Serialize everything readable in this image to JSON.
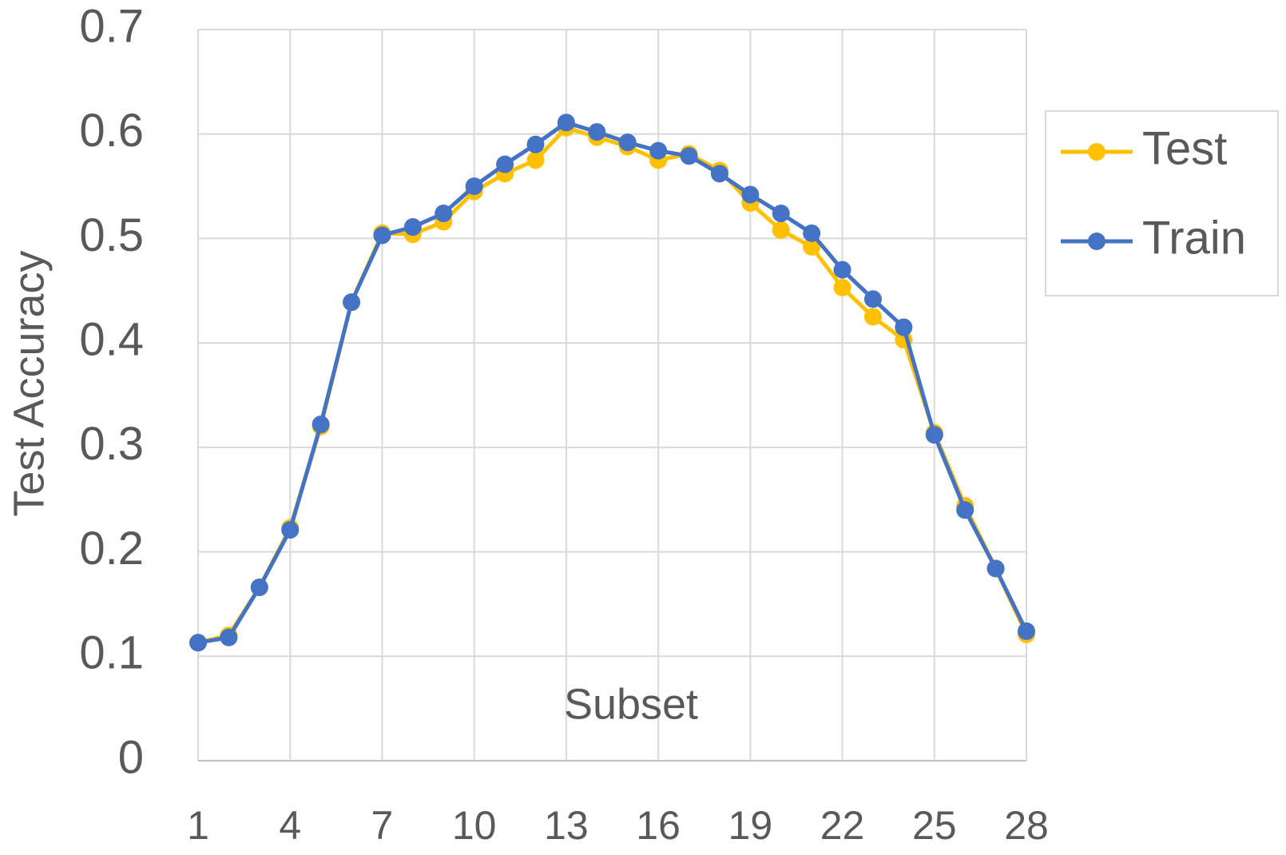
{
  "chart_data": {
    "type": "line",
    "x_label": "Subset",
    "y_label": "Test Accuracy",
    "x": [
      1,
      2,
      3,
      4,
      5,
      6,
      7,
      8,
      9,
      10,
      11,
      12,
      13,
      14,
      15,
      16,
      17,
      18,
      19,
      20,
      21,
      22,
      23,
      24,
      25,
      26,
      27,
      28
    ],
    "series": [
      {
        "name": "Test",
        "color": "#FFC000",
        "values": [
          0.113,
          0.12,
          0.166,
          0.223,
          0.32,
          0.439,
          0.505,
          0.504,
          0.516,
          0.545,
          0.562,
          0.575,
          0.606,
          0.597,
          0.588,
          0.575,
          0.581,
          0.565,
          0.534,
          0.508,
          0.492,
          0.453,
          0.425,
          0.403,
          0.314,
          0.244,
          0.184,
          0.121
        ]
      },
      {
        "name": "Train",
        "color": "#4472C4",
        "values": [
          0.113,
          0.118,
          0.166,
          0.221,
          0.322,
          0.439,
          0.503,
          0.511,
          0.524,
          0.55,
          0.571,
          0.59,
          0.611,
          0.602,
          0.592,
          0.584,
          0.579,
          0.562,
          0.542,
          0.524,
          0.505,
          0.47,
          0.442,
          0.415,
          0.312,
          0.24,
          0.184,
          0.124
        ]
      }
    ],
    "xlim": [
      1,
      28
    ],
    "xticks": [
      1,
      4,
      7,
      10,
      13,
      16,
      19,
      22,
      25,
      28
    ],
    "ylim": [
      0,
      0.7
    ],
    "yticks": [
      0,
      0.1,
      0.2,
      0.3,
      0.4,
      0.5,
      0.6,
      0.7
    ],
    "grid": true,
    "legend": "right"
  }
}
